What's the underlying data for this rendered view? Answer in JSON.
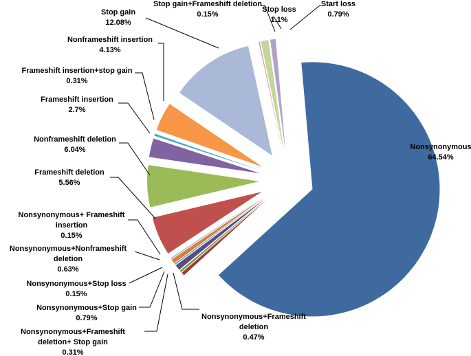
{
  "chart_data": {
    "type": "pie",
    "title": "",
    "exploded": true,
    "slices": [
      {
        "label": "Nonsynonymous",
        "value": 64.54,
        "value_text": "64.54%",
        "color": "#3e6a9f"
      },
      {
        "label": "Nonsynonymous+Frameshift deletion",
        "value": 0.47,
        "value_text": "0.47%",
        "color": "#9e3b38"
      },
      {
        "label": "Nonsynonymous+Frameshift deletion+ Stop gain",
        "value": 0.31,
        "value_text": "0.31%",
        "color": "#7ba14a"
      },
      {
        "label": "Nonsynonymous+Stop gain",
        "value": 0.79,
        "value_text": "0.79%",
        "color": "#5c4b87"
      },
      {
        "label": "Nonsynonymous+Stop loss",
        "value": 0.15,
        "value_text": "0.15%",
        "color": "#3e9bb6"
      },
      {
        "label": "Nonsynonymous+Nonframeshift deletion",
        "value": 0.63,
        "value_text": "0.63%",
        "color": "#dd7e34"
      },
      {
        "label": "Nonsynonymous+ Frameshift insertion",
        "value": 0.15,
        "value_text": "0.15%",
        "color": "#8eaadb"
      },
      {
        "label": "Frameshift deletion",
        "value": 5.56,
        "value_text": "5.56%",
        "color": "#c0504d"
      },
      {
        "label": "Nonframeshift deletion",
        "value": 6.04,
        "value_text": "6.04%",
        "color": "#9bbb59"
      },
      {
        "label": "Frameshift insertion",
        "value": 2.7,
        "value_text": "2.7%",
        "color": "#8064a2"
      },
      {
        "label": "Frameshift insertion+stop gain",
        "value": 0.31,
        "value_text": "0.31%",
        "color": "#4bacc6"
      },
      {
        "label": "Nonframeshift insertion",
        "value": 4.13,
        "value_text": "4.13%",
        "color": "#f79646"
      },
      {
        "label": "Stop gain",
        "value": 12.08,
        "value_text": "12.08%",
        "color": "#aab9d8"
      },
      {
        "label": "Stop gain+Frameshift deletion",
        "value": 0.15,
        "value_text": "0.15%",
        "color": "#d99694"
      },
      {
        "label": "Stop loss",
        "value": 1.1,
        "value_text": "1.1%",
        "color": "#c3d69b"
      },
      {
        "label": "Start loss",
        "value": 0.79,
        "value_text": "0.79%",
        "color": "#b3a2c7"
      }
    ]
  },
  "labels": {
    "nonsynonymous": {
      "name": "Nonsynonymous",
      "pct": "64.54%"
    },
    "nonsyn_fs_deletion": {
      "line1": "Nonsynonymous+Frameshift",
      "line2": "deletion",
      "pct": "0.47%"
    },
    "nonsyn_fs_del_stop_gain": {
      "line1": "Nonsynonymous+Frameshift",
      "line2": "deletion+ Stop gain",
      "pct": "0.31%"
    },
    "nonsyn_stop_gain": {
      "name": "Nonsynonymous+Stop gain",
      "pct": "0.79%"
    },
    "nonsyn_stop_loss": {
      "name": "Nonsynonymous+Stop loss",
      "pct": "0.15%"
    },
    "nonsyn_nonfs_deletion": {
      "line1": "Nonsynonymous+Nonframeshift",
      "line2": "deletion",
      "pct": "0.63%"
    },
    "nonsyn_fs_insertion": {
      "line1": "Nonsynonymous+ Frameshift",
      "line2": "insertion",
      "pct": "0.15%"
    },
    "fs_deletion": {
      "name": "Frameshift deletion",
      "pct": "5.56%"
    },
    "nonfs_deletion": {
      "name": "Nonframeshift deletion",
      "pct": "6.04%"
    },
    "fs_insertion": {
      "name": "Frameshift insertion",
      "pct": "2.7%"
    },
    "fs_insertion_stop_gain": {
      "name": "Frameshift insertion+stop gain",
      "pct": "0.31%"
    },
    "nonfs_insertion": {
      "name": "Nonframeshift insertion",
      "pct": "4.13%"
    },
    "stop_gain": {
      "name": "Stop gain",
      "pct": "12.08%"
    },
    "stop_gain_fs_deletion": {
      "name": "Stop gain+Frameshift deletion",
      "pct": "0.15%"
    },
    "stop_loss": {
      "name": "Stop loss",
      "pct": "1.1%"
    },
    "start_loss": {
      "name": "Start loss",
      "pct": "0.79%"
    }
  }
}
